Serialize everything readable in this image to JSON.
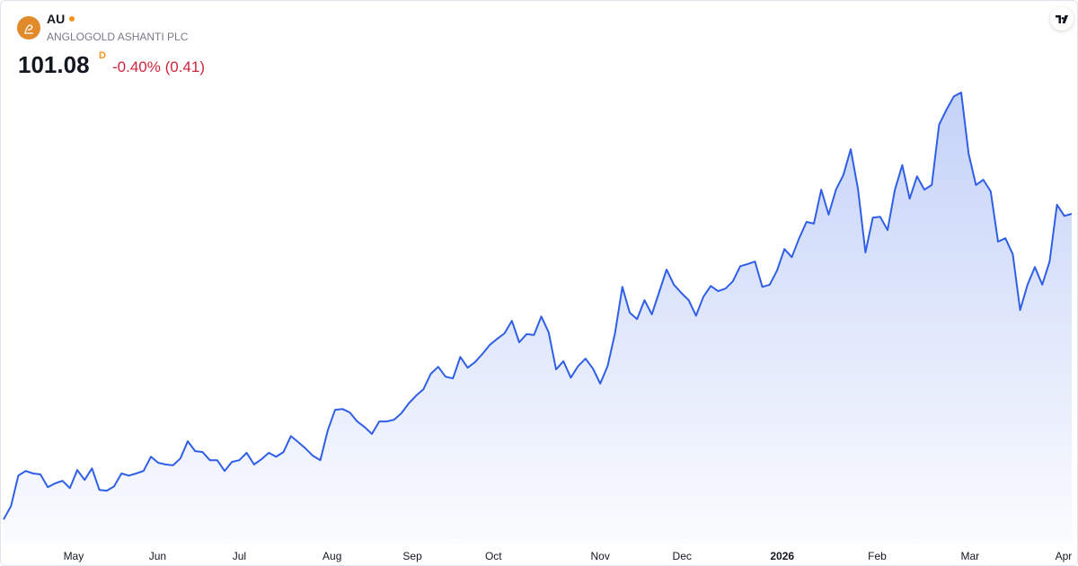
{
  "chart_data": {
    "type": "area",
    "title": "AU",
    "subtitle": "ANGLOGOLD ASHANTI PLC",
    "price": "101.08",
    "price_suffix": "D",
    "change": "-0.40% (0.41)",
    "color": "#2f5fe6",
    "values": [
      30.0,
      33.1,
      40.2,
      41.3,
      40.7,
      40.5,
      37.5,
      38.4,
      39.0,
      37.3,
      41.5,
      39.2,
      41.9,
      36.9,
      36.7,
      37.7,
      40.7,
      40.2,
      40.7,
      41.3,
      44.6,
      43.2,
      42.8,
      42.6,
      44.2,
      48.2,
      45.9,
      45.7,
      43.8,
      43.8,
      41.3,
      43.4,
      43.8,
      45.5,
      42.8,
      44.0,
      45.5,
      44.6,
      45.7,
      49.4,
      48.0,
      46.5,
      44.8,
      43.8,
      50.7,
      55.5,
      55.7,
      54.9,
      52.8,
      51.5,
      49.9,
      52.8,
      52.8,
      53.2,
      54.7,
      57.0,
      58.8,
      60.3,
      63.9,
      65.5,
      63.2,
      62.8,
      67.8,
      65.3,
      66.6,
      68.5,
      70.6,
      72.0,
      73.3,
      76.2,
      71.2,
      73.1,
      72.9,
      77.2,
      73.5,
      64.9,
      66.8,
      63.0,
      65.7,
      67.4,
      65.1,
      61.6,
      65.7,
      73.3,
      84.1,
      78.1,
      76.6,
      81.0,
      77.7,
      82.9,
      88.1,
      84.6,
      82.7,
      81.0,
      77.4,
      81.8,
      84.3,
      83.1,
      83.7,
      85.4,
      88.9,
      89.4,
      90.0,
      84.1,
      84.6,
      87.9,
      92.9,
      91.0,
      95.4,
      99.2,
      98.8,
      106.7,
      100.9,
      106.7,
      110.1,
      116.1,
      106.7,
      92.1,
      100.2,
      100.4,
      97.3,
      106.7,
      112.4,
      104.6,
      109.8,
      106.7,
      107.8,
      121.8,
      125.3,
      128.4,
      129.3,
      115.1,
      107.8,
      109.0,
      106.3,
      94.6,
      95.4,
      91.7,
      78.7,
      84.6,
      88.7,
      84.6,
      90.0,
      103.2,
      100.6,
      101.08
    ],
    "xlim": [
      0,
      145
    ],
    "xticks": [
      {
        "value": 9.5,
        "label": "May"
      },
      {
        "value": 20.9,
        "label": "Jun"
      },
      {
        "value": 32.0,
        "label": "Jul"
      },
      {
        "value": 44.6,
        "label": "Aug"
      },
      {
        "value": 55.5,
        "label": "Sep"
      },
      {
        "value": 66.5,
        "label": "Oct"
      },
      {
        "value": 81.0,
        "label": "Nov"
      },
      {
        "value": 92.1,
        "label": "Dec"
      },
      {
        "value": 105.7,
        "label": "2026"
      },
      {
        "value": 118.6,
        "label": "Feb"
      },
      {
        "value": 131.2,
        "label": "Mar"
      },
      {
        "value": 143.9,
        "label": "Apr"
      }
    ],
    "ylim": [
      24.2,
      150.6
    ],
    "grid": false
  }
}
